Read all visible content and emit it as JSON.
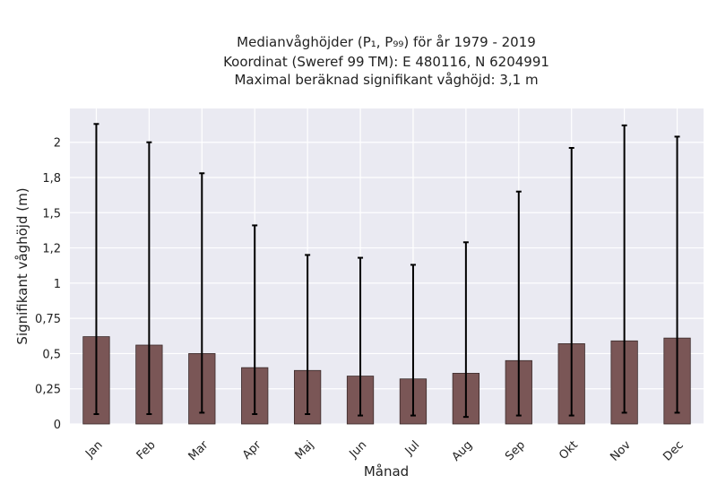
{
  "chart_data": {
    "type": "bar",
    "title_lines": [
      "Medianvåghöjder (P₁, P₉₉) för år 1979 - 2019",
      "Koordinat (Sweref 99 TM): E 480116, N 6204991",
      "Maximal beräknad signifikant våghöjd: 3,1 m"
    ],
    "xlabel": "Månad",
    "ylabel": "Signifikant våghöjd (m)",
    "categories": [
      "Jan",
      "Feb",
      "Mar",
      "Apr",
      "Maj",
      "Jun",
      "Jul",
      "Aug",
      "Sep",
      "Okt",
      "Nov",
      "Dec"
    ],
    "values": [
      0.62,
      0.56,
      0.5,
      0.4,
      0.38,
      0.34,
      0.32,
      0.36,
      0.45,
      0.57,
      0.59,
      0.61
    ],
    "error_low": [
      0.07,
      0.07,
      0.08,
      0.07,
      0.07,
      0.06,
      0.06,
      0.05,
      0.06,
      0.06,
      0.08,
      0.08
    ],
    "error_high": [
      2.13,
      2.0,
      1.78,
      1.41,
      1.2,
      1.18,
      1.13,
      1.29,
      1.65,
      1.96,
      2.12,
      2.04
    ],
    "y_ticks": [
      0,
      0.25,
      0.5,
      0.75,
      1.0,
      1.25,
      1.5,
      1.75,
      2.0
    ],
    "y_tick_labels": [
      "0",
      "0,25",
      "0,5",
      "0,75",
      "1",
      "1,2",
      "1,5",
      "1,8",
      "2"
    ],
    "ylim": [
      0,
      2.24
    ],
    "grid": true,
    "colors": {
      "bar": "#7a5656",
      "bar_edge": "#3a2a2a",
      "error_bar": "#000000",
      "plot_background": "#eaeaf2",
      "grid": "#ffffff"
    }
  }
}
